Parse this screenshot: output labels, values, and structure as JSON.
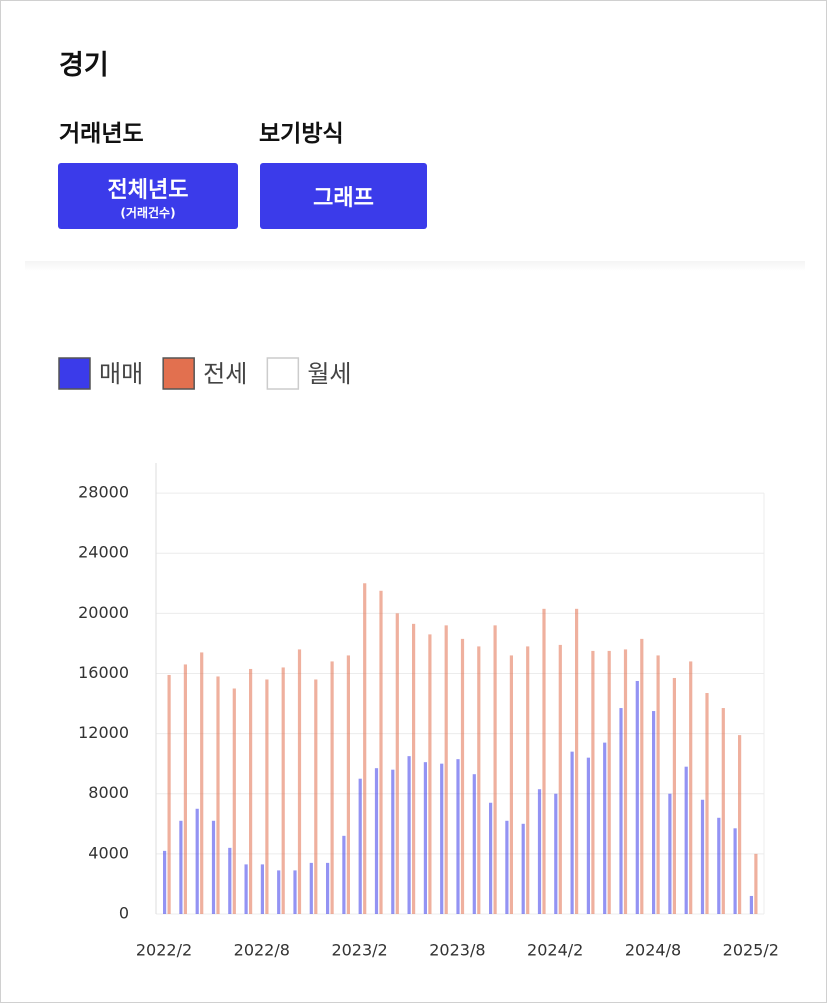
{
  "header": {
    "title": "경기"
  },
  "filters": [
    {
      "label": "거래년도",
      "button": "전체년도",
      "sub": "(거래건수)"
    },
    {
      "label": "보기방식",
      "button": "그래프"
    }
  ],
  "chart_data": {
    "type": "bar",
    "categories": [
      "2022/2",
      null,
      null,
      null,
      null,
      null,
      "2022/8",
      null,
      null,
      null,
      null,
      null,
      "2023/2",
      null,
      null,
      null,
      null,
      null,
      "2023/8",
      null,
      null,
      null,
      null,
      null,
      "2024/2",
      null,
      null,
      null,
      null,
      null,
      "2024/8",
      null,
      null,
      null,
      null,
      null,
      "2025/2"
    ],
    "series": [
      {
        "name": "매매",
        "color": "#3b3bea",
        "values": [
          4200,
          6200,
          7000,
          6200,
          4400,
          3300,
          3300,
          2900,
          2900,
          3400,
          3400,
          5200,
          9000,
          9700,
          9600,
          10500,
          10100,
          10000,
          10300,
          9300,
          7400,
          6200,
          6000,
          8300,
          8000,
          10800,
          10400,
          11400,
          13700,
          15500,
          13500,
          8000,
          9800,
          7600,
          6400,
          5700,
          1200
        ]
      },
      {
        "name": "전세",
        "color": "#e2704f",
        "values": [
          15900,
          16600,
          17400,
          15800,
          15000,
          16300,
          15600,
          16400,
          17600,
          15600,
          16800,
          17200,
          22000,
          21500,
          20000,
          19300,
          18600,
          19200,
          18300,
          17800,
          19200,
          17200,
          17800,
          20300,
          17900,
          20300,
          17500,
          17500,
          17600,
          18300,
          17200,
          15700,
          16800,
          14700,
          13700,
          11900,
          4000
        ]
      },
      {
        "name": "월세",
        "color": "#ffffff",
        "visible": false,
        "values": [
          null,
          null,
          null,
          null,
          null,
          null,
          null,
          null,
          null,
          null,
          null,
          null,
          null,
          null,
          null,
          null,
          null,
          null,
          null,
          null,
          null,
          null,
          null,
          null,
          null,
          null,
          null,
          null,
          null,
          null,
          null,
          null,
          null,
          null,
          null,
          null,
          null
        ]
      }
    ],
    "ylim": [
      0,
      30000
    ],
    "yticks": [
      0,
      4000,
      8000,
      12000,
      16000,
      20000,
      24000,
      28000
    ],
    "grid": true,
    "legend": "top-left"
  }
}
